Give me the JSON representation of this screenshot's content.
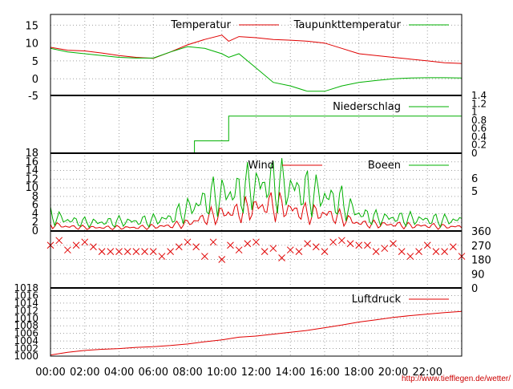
{
  "credit": "http://www.tiefflegen.de/wetter/",
  "colors": {
    "red": "#e00000",
    "green": "#00b000",
    "grid": "#a0a0a0",
    "frame": "#000000",
    "credit": "#cc0000"
  },
  "chart_data": [
    {
      "type": "line",
      "panel": "temperature",
      "title": "",
      "xlabel": "",
      "ylabel": "",
      "x_ticks": [
        "00:00",
        "02:00",
        "04:00",
        "06:00",
        "08:00",
        "10:00",
        "12:00",
        "14:00",
        "16:00",
        "18:00",
        "20:00",
        "22:00"
      ],
      "y_ticks": [
        "15",
        "10",
        "5",
        "0",
        "-5"
      ],
      "ylim": [
        -5,
        18
      ],
      "grid": true,
      "legend_position": "top-right",
      "x": [
        0,
        1,
        2,
        3,
        4,
        5,
        6,
        7,
        8,
        9,
        10,
        10.4,
        11,
        12,
        13,
        14,
        15,
        16,
        17,
        18,
        19,
        20,
        21,
        22,
        23,
        24
      ],
      "series": [
        {
          "name": "Temperatur",
          "color": "#e00000",
          "values": [
            8.8,
            8.0,
            7.8,
            7.2,
            6.5,
            6.0,
            5.7,
            7.5,
            9.5,
            11.0,
            12.2,
            10.5,
            11.8,
            11.5,
            11.0,
            10.8,
            10.5,
            10.0,
            8.5,
            7.0,
            6.5,
            6.0,
            5.5,
            5.0,
            4.5,
            4.3
          ]
        },
        {
          "name": "Taupunkttemperatur",
          "color": "#00b000",
          "values": [
            8.5,
            7.5,
            7.0,
            6.5,
            6.0,
            5.8,
            5.8,
            7.5,
            9.0,
            8.5,
            7.0,
            6.0,
            7.0,
            3.0,
            -1.0,
            -2.0,
            -3.5,
            -3.5,
            -2.0,
            -1.0,
            -0.5,
            0.0,
            0.2,
            0.3,
            0.3,
            0.2
          ]
        }
      ]
    },
    {
      "type": "line",
      "panel": "precipitation",
      "title": "",
      "y_ticks": [
        "1.4",
        "1.2",
        "1",
        "0.8",
        "0.6",
        "0.4",
        "0.2",
        "0"
      ],
      "ylim": [
        0,
        1.4
      ],
      "grid": false,
      "legend_position": "top-right",
      "x": [
        0,
        8.4,
        8.4,
        10.4,
        10.4,
        24
      ],
      "series": [
        {
          "name": "Niederschlag",
          "color": "#00b000",
          "values": [
            0,
            0,
            0.3,
            0.3,
            0.9,
            0.9
          ]
        }
      ]
    },
    {
      "type": "line",
      "panel": "wind",
      "title": "",
      "y_ticks": [
        "18",
        "16",
        "14",
        "12",
        "10",
        "8",
        "6",
        "4",
        "2",
        "0"
      ],
      "y_ticks_right": [
        "6",
        "5"
      ],
      "ylim": [
        0,
        18
      ],
      "grid": true,
      "legend_position": "top-right",
      "x": [
        0,
        1,
        2,
        3,
        4,
        5,
        6,
        7,
        8,
        9,
        10,
        11,
        12,
        13,
        14,
        15,
        16,
        17,
        18,
        19,
        20,
        21,
        22,
        23,
        24
      ],
      "series": [
        {
          "name": "Wind",
          "color": "#e00000",
          "values": [
            1.5,
            1.0,
            0.8,
            0.8,
            0.8,
            0.8,
            1.0,
            1.2,
            1.8,
            3.0,
            4.0,
            4.5,
            5.5,
            6.0,
            5.0,
            4.0,
            4.0,
            3.0,
            1.8,
            1.5,
            1.5,
            1.2,
            1.2,
            1.0,
            1.0
          ]
        },
        {
          "name": "Boeen",
          "color": "#00b000",
          "values": [
            3.5,
            2.5,
            2.0,
            2.0,
            2.2,
            2.2,
            2.5,
            3.0,
            5.0,
            7.0,
            8.5,
            9.0,
            10.5,
            11.0,
            10.0,
            9.0,
            8.0,
            6.5,
            4.0,
            3.0,
            3.0,
            2.8,
            2.6,
            2.5,
            2.5
          ]
        }
      ]
    },
    {
      "type": "scatter",
      "panel": "wind_direction",
      "title": "",
      "y_ticks_right": [
        "360",
        "270",
        "180",
        "90",
        "0"
      ],
      "ylim": [
        0,
        360
      ],
      "grid": true,
      "x": [
        0,
        0.5,
        1,
        1.5,
        2,
        2.5,
        3,
        3.5,
        4,
        4.5,
        5,
        5.5,
        6,
        6.5,
        7,
        7.5,
        8,
        8.5,
        9,
        9.5,
        10,
        10.5,
        11,
        11.5,
        12,
        12.5,
        13,
        13.5,
        14,
        14.5,
        15,
        15.5,
        16,
        16.5,
        17,
        17.5,
        18,
        18.5,
        19,
        19.5,
        20,
        20.5,
        21,
        21.5,
        22,
        22.5,
        23,
        23.5,
        24
      ],
      "series": [
        {
          "name": "",
          "color": "#e00000",
          "marker": "x",
          "values": [
            270,
            300,
            240,
            270,
            290,
            260,
            230,
            230,
            230,
            230,
            230,
            230,
            230,
            200,
            230,
            260,
            290,
            260,
            200,
            290,
            180,
            270,
            240,
            280,
            290,
            230,
            250,
            190,
            240,
            230,
            280,
            260,
            230,
            290,
            300,
            280,
            270,
            270,
            230,
            250,
            280,
            230,
            200,
            230,
            270,
            230,
            230,
            260,
            200
          ]
        }
      ]
    },
    {
      "type": "line",
      "panel": "pressure",
      "title": "",
      "y_ticks": [
        "1018",
        "1016",
        "1014",
        "1012",
        "1010",
        "1008",
        "1006",
        "1004",
        "1002",
        "1000"
      ],
      "ylim": [
        1000,
        1018
      ],
      "grid": true,
      "legend_position": "top-right",
      "x": [
        0,
        1,
        2,
        3,
        4,
        5,
        6,
        7,
        8,
        9,
        10,
        11,
        12,
        13,
        14,
        15,
        16,
        17,
        18,
        19,
        20,
        21,
        22,
        23,
        24
      ],
      "series": [
        {
          "name": "Luftdruck",
          "color": "#e00000",
          "values": [
            1000.3,
            1001.0,
            1001.5,
            1001.8,
            1002.0,
            1002.3,
            1002.5,
            1002.8,
            1003.2,
            1003.8,
            1004.3,
            1005.0,
            1005.3,
            1005.8,
            1006.3,
            1006.8,
            1007.5,
            1008.2,
            1009.0,
            1009.6,
            1010.2,
            1010.7,
            1011.1,
            1011.5,
            1011.8
          ]
        }
      ]
    }
  ]
}
